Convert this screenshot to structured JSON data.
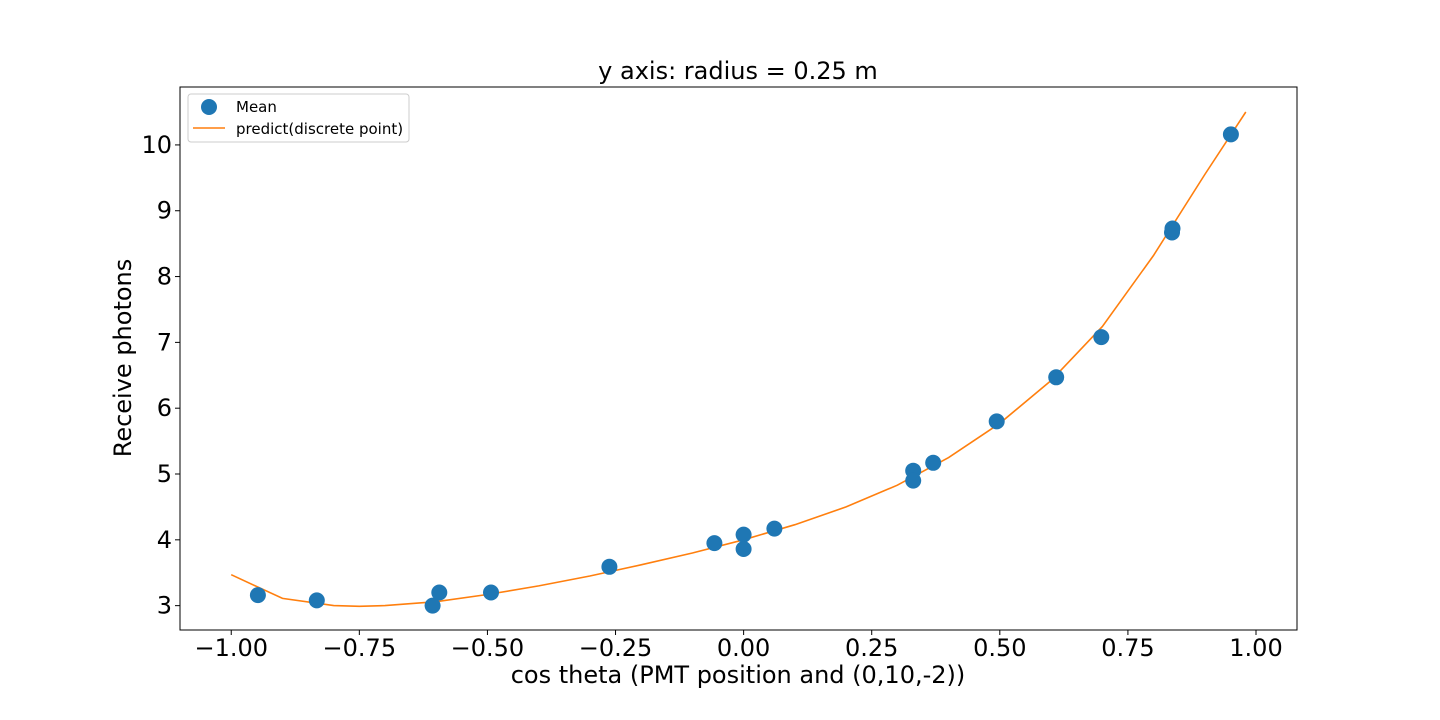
{
  "chart_data": {
    "type": "scatter",
    "title": "y axis: radius = 0.25 m",
    "xlabel": "cos theta (PMT position and (0,10,-2))",
    "ylabel": "Receive photons",
    "xlim": [
      -1.1,
      1.08
    ],
    "ylim": [
      2.63,
      10.88
    ],
    "xticks": [
      -1.0,
      -0.75,
      -0.5,
      -0.25,
      0.0,
      0.25,
      0.5,
      0.75,
      1.0
    ],
    "xtick_labels": [
      "−1.00",
      "−0.75",
      "−0.50",
      "−0.25",
      "0.00",
      "0.25",
      "0.50",
      "0.75",
      "1.00"
    ],
    "yticks": [
      3,
      4,
      5,
      6,
      7,
      8,
      9,
      10
    ],
    "ytick_labels": [
      "3",
      "4",
      "5",
      "6",
      "7",
      "8",
      "9",
      "10"
    ],
    "grid": false,
    "legend_position": "top-left",
    "series": [
      {
        "name": "Mean",
        "kind": "scatter",
        "color": "#1f77b4",
        "x": [
          -0.948,
          -0.833,
          -0.607,
          -0.594,
          -0.493,
          -0.262,
          -0.057,
          0.0,
          0.0,
          0.06,
          0.331,
          0.331,
          0.37,
          0.494,
          0.61,
          0.698,
          0.836,
          0.837,
          0.951
        ],
        "y": [
          3.16,
          3.08,
          3.0,
          3.2,
          3.2,
          3.59,
          3.95,
          4.08,
          3.86,
          4.17,
          5.05,
          4.9,
          5.17,
          5.8,
          6.47,
          7.08,
          8.67,
          8.73,
          10.16
        ]
      },
      {
        "name": "predict(discrete point)",
        "kind": "line",
        "color": "#ff7f0e",
        "x": [
          -1.0,
          -0.9,
          -0.8,
          -0.75,
          -0.7,
          -0.6,
          -0.5,
          -0.4,
          -0.3,
          -0.2,
          -0.1,
          0.0,
          0.1,
          0.2,
          0.3,
          0.4,
          0.5,
          0.6,
          0.7,
          0.8,
          0.9,
          0.98
        ],
        "y": [
          3.47,
          3.11,
          3.0,
          2.99,
          3.0,
          3.06,
          3.17,
          3.3,
          3.45,
          3.62,
          3.8,
          4.0,
          4.23,
          4.5,
          4.83,
          5.25,
          5.77,
          6.42,
          7.24,
          8.32,
          9.55,
          10.5
        ]
      }
    ]
  }
}
